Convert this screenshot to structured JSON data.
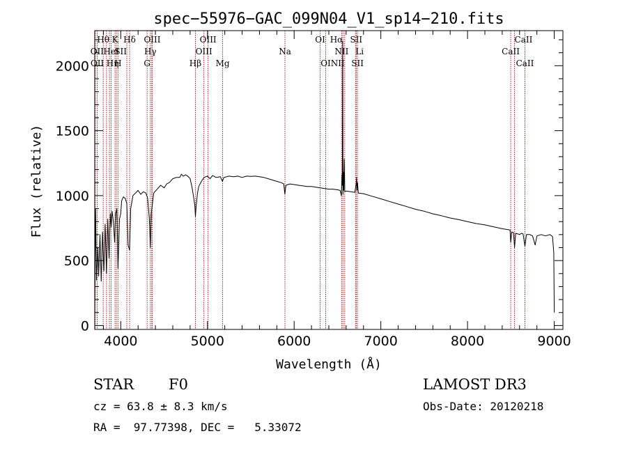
{
  "chart_data": {
    "type": "line",
    "title": "spec−55976−GAC_099N04_V1_sp14−210.fits",
    "xlabel": "Wavelength (Å)",
    "ylabel": "Flux (relative)",
    "xlim": [
      3700,
      9100
    ],
    "ylim": [
      -30,
      2270
    ],
    "xticks": [
      4000,
      5000,
      6000,
      7000,
      8000,
      9000
    ],
    "yticks": [
      0,
      500,
      1000,
      1500,
      2000
    ],
    "grid": false,
    "series": [
      {
        "line_color": "#000000",
        "points": [
          [
            3700,
            80
          ],
          [
            3710,
            900
          ],
          [
            3720,
            350
          ],
          [
            3735,
            600
          ],
          [
            3745,
            380
          ],
          [
            3760,
            700
          ],
          [
            3775,
            340
          ],
          [
            3790,
            720
          ],
          [
            3805,
            420
          ],
          [
            3820,
            780
          ],
          [
            3835,
            400
          ],
          [
            3850,
            820
          ],
          [
            3865,
            520
          ],
          [
            3880,
            860
          ],
          [
            3890,
            760
          ],
          [
            3900,
            880
          ],
          [
            3915,
            800
          ],
          [
            3930,
            640
          ],
          [
            3940,
            860
          ],
          [
            3955,
            900
          ],
          [
            3968,
            440
          ],
          [
            3985,
            820
          ],
          [
            4000,
            860
          ],
          [
            4010,
            960
          ],
          [
            4030,
            990
          ],
          [
            4050,
            980
          ],
          [
            4070,
            940
          ],
          [
            4085,
            620
          ],
          [
            4102,
            580
          ],
          [
            4115,
            900
          ],
          [
            4140,
            1000
          ],
          [
            4170,
            1020
          ],
          [
            4200,
            1040
          ],
          [
            4230,
            1010
          ],
          [
            4260,
            1030
          ],
          [
            4290,
            1020
          ],
          [
            4310,
            980
          ],
          [
            4330,
            820
          ],
          [
            4341,
            600
          ],
          [
            4352,
            860
          ],
          [
            4380,
            1020
          ],
          [
            4420,
            1050
          ],
          [
            4460,
            1080
          ],
          [
            4500,
            1060
          ],
          [
            4530,
            1090
          ],
          [
            4560,
            1100
          ],
          [
            4600,
            1130
          ],
          [
            4640,
            1140
          ],
          [
            4680,
            1140
          ],
          [
            4700,
            1165
          ],
          [
            4720,
            1150
          ],
          [
            4750,
            1160
          ],
          [
            4780,
            1145
          ],
          [
            4800,
            1130
          ],
          [
            4820,
            1070
          ],
          [
            4840,
            990
          ],
          [
            4855,
            920
          ],
          [
            4861,
            840
          ],
          [
            4870,
            920
          ],
          [
            4885,
            1020
          ],
          [
            4900,
            1070
          ],
          [
            4930,
            1110
          ],
          [
            4960,
            1140
          ],
          [
            5000,
            1150
          ],
          [
            5030,
            1130
          ],
          [
            5060,
            1155
          ],
          [
            5100,
            1140
          ],
          [
            5150,
            1145
          ],
          [
            5172,
            1110
          ],
          [
            5190,
            1140
          ],
          [
            5250,
            1150
          ],
          [
            5300,
            1145
          ],
          [
            5350,
            1150
          ],
          [
            5400,
            1140
          ],
          [
            5450,
            1150
          ],
          [
            5500,
            1148
          ],
          [
            5550,
            1150
          ],
          [
            5600,
            1145
          ],
          [
            5650,
            1140
          ],
          [
            5700,
            1130
          ],
          [
            5750,
            1120
          ],
          [
            5800,
            1110
          ],
          [
            5850,
            1100
          ],
          [
            5880,
            1090
          ],
          [
            5893,
            1010
          ],
          [
            5905,
            1080
          ],
          [
            5950,
            1090
          ],
          [
            6000,
            1085
          ],
          [
            6050,
            1080
          ],
          [
            6100,
            1075
          ],
          [
            6150,
            1070
          ],
          [
            6200,
            1070
          ],
          [
            6250,
            1065
          ],
          [
            6300,
            1060
          ],
          [
            6350,
            1055
          ],
          [
            6400,
            1050
          ],
          [
            6450,
            1050
          ],
          [
            6500,
            1045
          ],
          [
            6530,
            1040
          ],
          [
            6545,
            1000
          ],
          [
            6552,
            1160
          ],
          [
            6556,
            1080
          ],
          [
            6560,
            2190
          ],
          [
            6563,
            1010
          ],
          [
            6567,
            1180
          ],
          [
            6572,
            1040
          ],
          [
            6578,
            1280
          ],
          [
            6584,
            1030
          ],
          [
            6600,
            1035
          ],
          [
            6650,
            1030
          ],
          [
            6700,
            1025
          ],
          [
            6716,
            1090
          ],
          [
            6720,
            1140
          ],
          [
            6725,
            1040
          ],
          [
            6731,
            1100
          ],
          [
            6740,
            1020
          ],
          [
            6800,
            1015
          ],
          [
            6900,
            995
          ],
          [
            7000,
            975
          ],
          [
            7100,
            955
          ],
          [
            7200,
            935
          ],
          [
            7300,
            915
          ],
          [
            7400,
            895
          ],
          [
            7500,
            880
          ],
          [
            7600,
            860
          ],
          [
            7700,
            845
          ],
          [
            7800,
            828
          ],
          [
            7900,
            815
          ],
          [
            8000,
            800
          ],
          [
            8100,
            785
          ],
          [
            8200,
            775
          ],
          [
            8300,
            760
          ],
          [
            8400,
            745
          ],
          [
            8450,
            740
          ],
          [
            8490,
            735
          ],
          [
            8498,
            640
          ],
          [
            8510,
            720
          ],
          [
            8530,
            715
          ],
          [
            8542,
            600
          ],
          [
            8555,
            710
          ],
          [
            8580,
            705
          ],
          [
            8600,
            700
          ],
          [
            8620,
            710
          ],
          [
            8640,
            705
          ],
          [
            8662,
            610
          ],
          [
            8680,
            700
          ],
          [
            8720,
            700
          ],
          [
            8750,
            690
          ],
          [
            8780,
            620
          ],
          [
            8800,
            690
          ],
          [
            8850,
            700
          ],
          [
            8900,
            690
          ],
          [
            8950,
            700
          ],
          [
            8980,
            685
          ],
          [
            8995,
            560
          ],
          [
            9000,
            100
          ]
        ]
      }
    ],
    "lines": [
      {
        "label": "Hθ",
        "wave": 3798,
        "row": 0,
        "anchor": "middle"
      },
      {
        "label": "Hη",
        "wave": 3835,
        "row": 2,
        "anchor": "start"
      },
      {
        "label": "K",
        "wave": 3934,
        "row": 0,
        "anchor": "middle"
      },
      {
        "label": "H",
        "wave": 3968,
        "row": 2,
        "anchor": "middle"
      },
      {
        "label": "Hδ",
        "wave": 4102,
        "row": 0,
        "anchor": "middle"
      },
      {
        "label": "OII",
        "wave": 3727,
        "row": 1,
        "anchor": "middle"
      },
      {
        "label": "OII",
        "wave": 3729,
        "row": 2,
        "anchor": "middle"
      },
      {
        "label": "HeI",
        "wave": 3889,
        "row": 1,
        "anchor": "middle"
      },
      {
        "label": "SII",
        "wave": 4070,
        "row": 1,
        "anchor": "end"
      },
      {
        "label": "OIII",
        "wave": 4363,
        "row": 0,
        "anchor": "middle"
      },
      {
        "label": "Hγ",
        "wave": 4341,
        "row": 1,
        "anchor": "middle"
      },
      {
        "label": "G",
        "wave": 4304,
        "row": 2,
        "anchor": "middle"
      },
      {
        "label": "OIII",
        "wave": 4959,
        "row": 1,
        "anchor": "middle"
      },
      {
        "label": "OIII",
        "wave": 5007,
        "row": 0,
        "anchor": "middle"
      },
      {
        "label": "Hβ",
        "wave": 4861,
        "row": 2,
        "anchor": "middle"
      },
      {
        "label": "Mg",
        "wave": 5175,
        "row": 2,
        "anchor": "middle"
      },
      {
        "label": "Na",
        "wave": 5894,
        "row": 1,
        "anchor": "middle"
      },
      {
        "label": "OI",
        "wave": 6300,
        "row": 0,
        "anchor": "middle"
      },
      {
        "label": "OI",
        "wave": 6364,
        "row": 2,
        "anchor": "middle"
      },
      {
        "label": "Hα",
        "wave": 6563,
        "row": 0,
        "anchor": "end"
      },
      {
        "label": "NII",
        "wave": 6548,
        "row": 1,
        "anchor": "middle"
      },
      {
        "label": "NII",
        "wave": 6583,
        "row": 2,
        "anchor": "end"
      },
      {
        "label": "SII",
        "wave": 6716,
        "row": 0,
        "anchor": "middle"
      },
      {
        "label": "Li",
        "wave": 6708,
        "row": 1,
        "anchor": "start"
      },
      {
        "label": "SII",
        "wave": 6731,
        "row": 2,
        "anchor": "middle"
      },
      {
        "label": "CaII",
        "wave": 8498,
        "row": 1,
        "anchor": "middle"
      },
      {
        "label": "CaII",
        "wave": 8542,
        "row": 0,
        "anchor": "start"
      },
      {
        "label": "CaII",
        "wave": 8662,
        "row": 2,
        "anchor": "middle"
      }
    ],
    "extra_line_waves": [
      3704,
      3870,
      3950,
      4358
    ]
  },
  "info": {
    "object_class": "STAR",
    "subclass": "F0",
    "survey": "LAMOST DR3",
    "redshift": "cz = 63.8 ± 8.3 km/s",
    "obs_date": "Obs-Date: 20120218",
    "coords": "RA =  97.77398, DEC =   5.33072"
  },
  "colors": {
    "line_marker": "#aa2222",
    "spectrum": "#000000"
  }
}
